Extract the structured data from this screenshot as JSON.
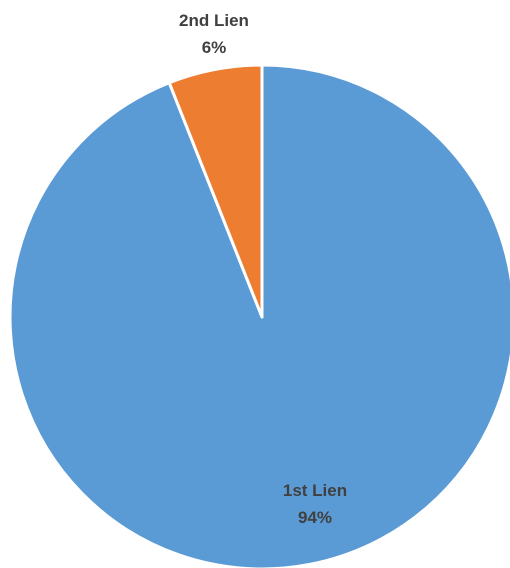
{
  "chart_data": {
    "type": "pie",
    "title": "",
    "categories": [
      "1st Lien",
      "2nd Lien"
    ],
    "values": [
      94,
      6
    ],
    "labels": [
      {
        "category": "1st Lien",
        "percent": "94%"
      },
      {
        "category": "2nd Lien",
        "percent": "6%"
      }
    ],
    "colors": [
      "#5B9BD5",
      "#ED7D31"
    ],
    "slice_border_color": "#ffffff",
    "legend": "none",
    "start_angle": "12 o'clock",
    "direction": "clockwise"
  }
}
